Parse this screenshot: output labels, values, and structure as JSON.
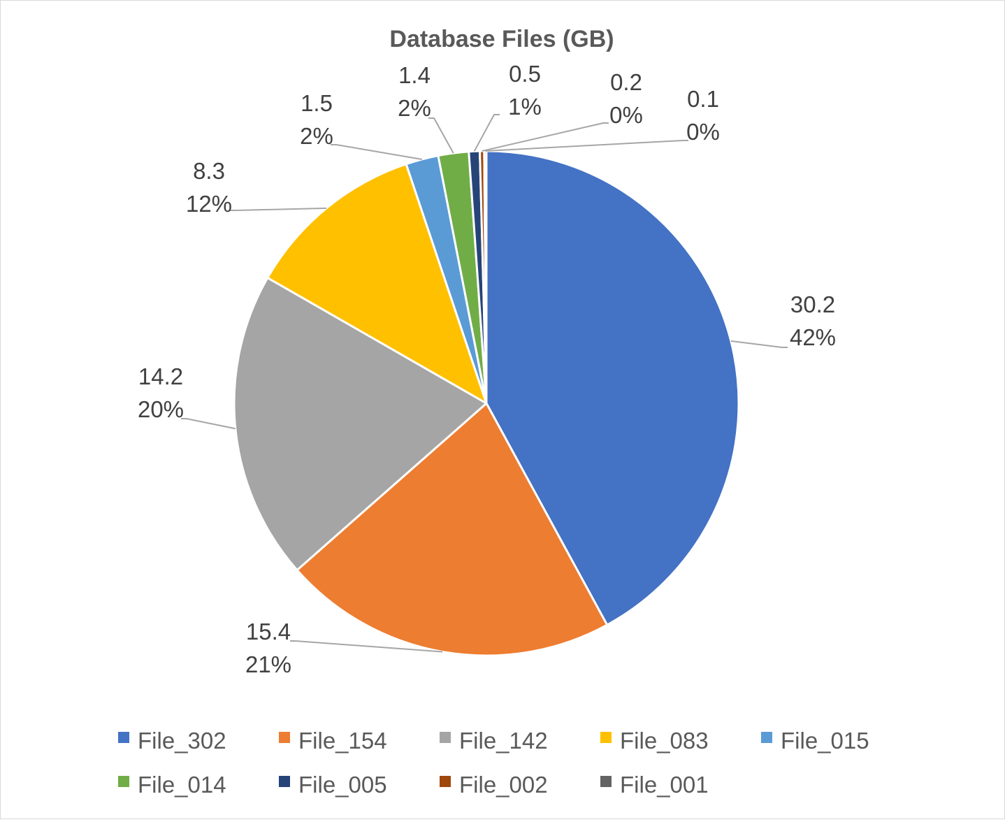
{
  "chart_data": {
    "type": "pie",
    "title": "Database Files (GB)",
    "legend_position": "bottom",
    "series": [
      {
        "name": "File_302",
        "value": 30.2,
        "percent_label": "42%",
        "value_label": "30.2",
        "color": "#4472C4"
      },
      {
        "name": "File_154",
        "value": 15.4,
        "percent_label": "21%",
        "value_label": "15.4",
        "color": "#ED7D31"
      },
      {
        "name": "File_142",
        "value": 14.2,
        "percent_label": "20%",
        "value_label": "14.2",
        "color": "#A5A5A5"
      },
      {
        "name": "File_083",
        "value": 8.3,
        "percent_label": "12%",
        "value_label": "8.3",
        "color": "#FFC000"
      },
      {
        "name": "File_015",
        "value": 1.5,
        "percent_label": "2%",
        "value_label": "1.5",
        "color": "#5B9BD5"
      },
      {
        "name": "File_014",
        "value": 1.4,
        "percent_label": "2%",
        "value_label": "1.4",
        "color": "#70AD47"
      },
      {
        "name": "File_005",
        "value": 0.5,
        "percent_label": "1%",
        "value_label": "0.5",
        "color": "#264478"
      },
      {
        "name": "File_002",
        "value": 0.2,
        "percent_label": "0%",
        "value_label": "0.2",
        "color": "#9E480E"
      },
      {
        "name": "File_001",
        "value": 0.1,
        "percent_label": "0%",
        "value_label": "0.1",
        "color": "#636363"
      }
    ]
  }
}
